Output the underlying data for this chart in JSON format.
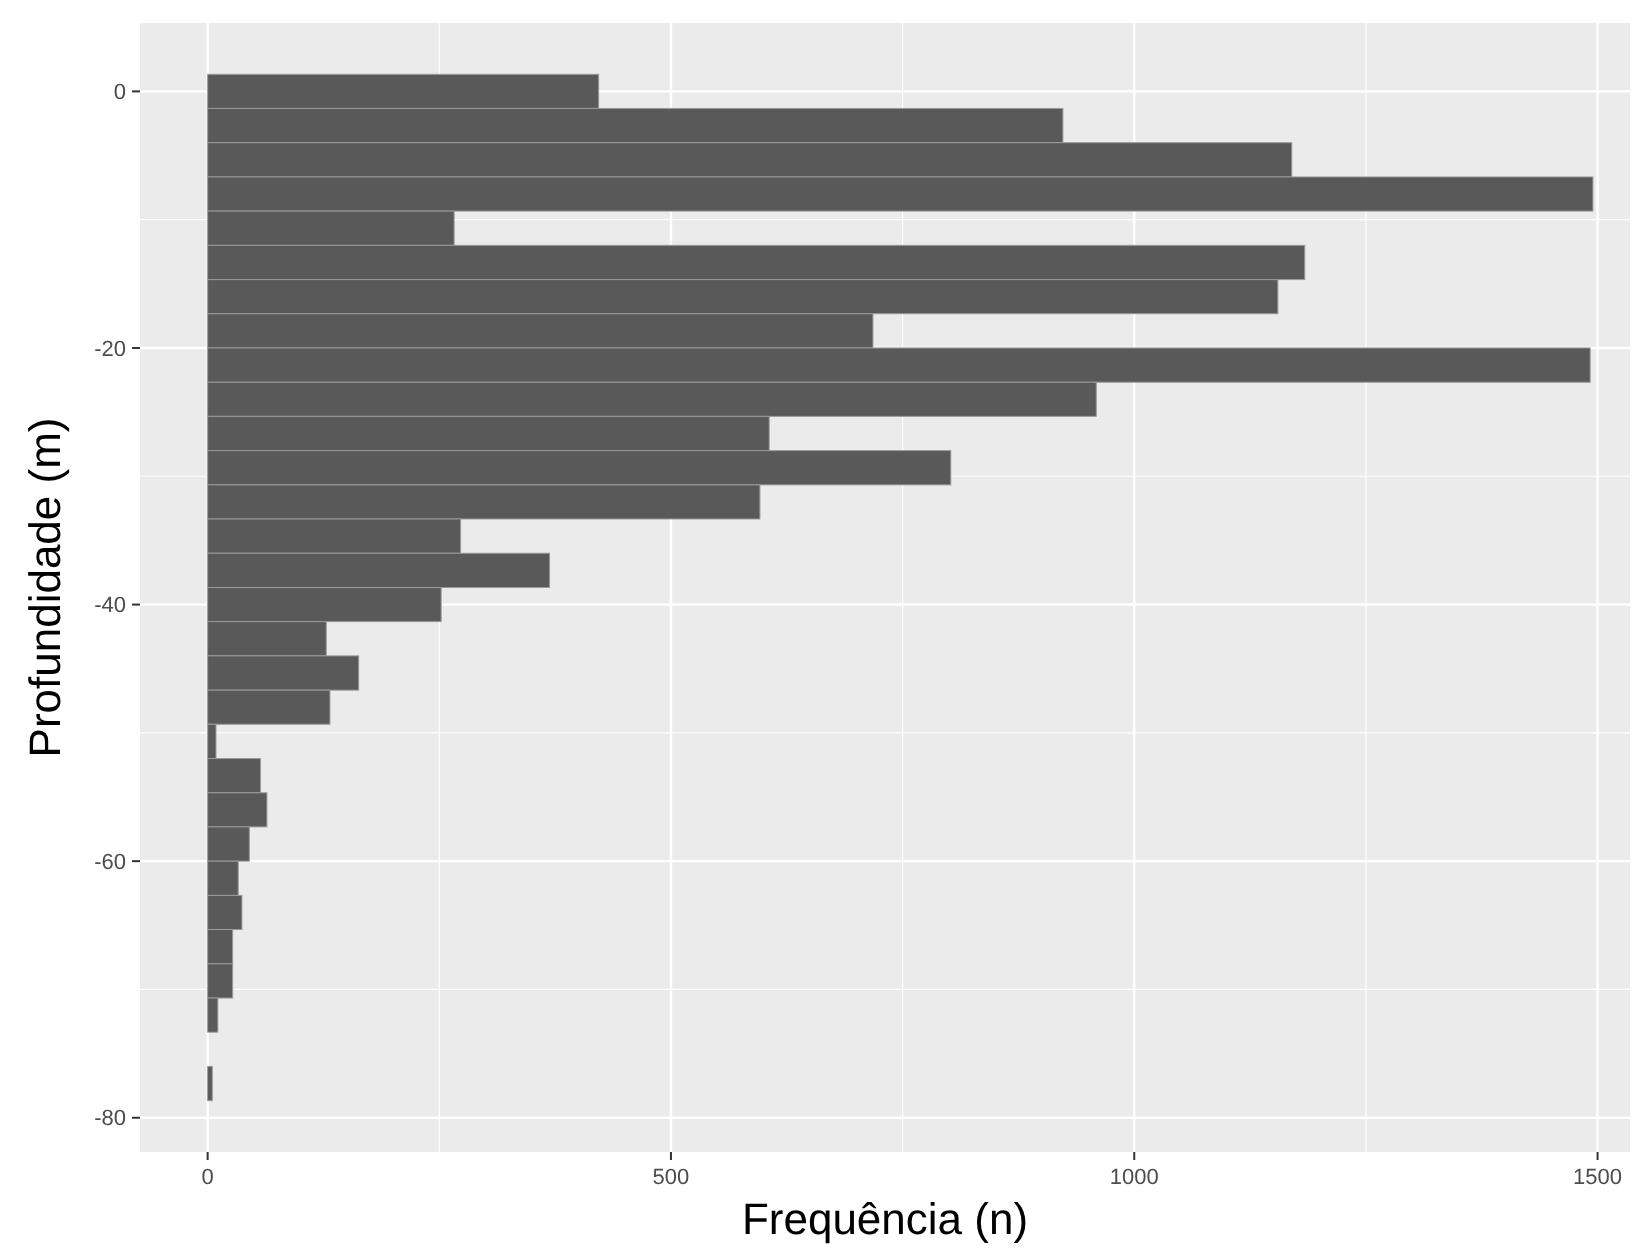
{
  "chart_data": {
    "type": "histogram",
    "orientation": "horizontal",
    "xlabel": "Frequência (n)",
    "ylabel": "Profundidade (m)",
    "bins": [
      1.33,
      -1.33,
      -4,
      -6.67,
      -9.33,
      -12,
      -14.67,
      -17.33,
      -20,
      -22.67,
      -25.33,
      -28,
      -30.67,
      -33.33,
      -36,
      -38.67,
      -41.33,
      -44,
      -46.67,
      -49.33,
      -52,
      -54.67,
      -57.33,
      -60,
      -62.67,
      -65.33,
      -68,
      -70.67,
      -73.33,
      -76,
      -78.67
    ],
    "values": [
      422,
      923,
      1170,
      1495,
      266,
      1184,
      1155,
      718,
      1492,
      959,
      606,
      802,
      596,
      273,
      369,
      252,
      128,
      163,
      132,
      9,
      57,
      64,
      45,
      33,
      37,
      27,
      27,
      11,
      0,
      5
    ],
    "color": "#595959",
    "xlim": [
      -73,
      1535
    ],
    "ylim": [
      -82.67,
      5.33
    ],
    "xticks": [
      0,
      500,
      1000,
      1500
    ],
    "yticks": [
      0,
      -20,
      -40,
      -60,
      -80
    ],
    "grid": true
  }
}
